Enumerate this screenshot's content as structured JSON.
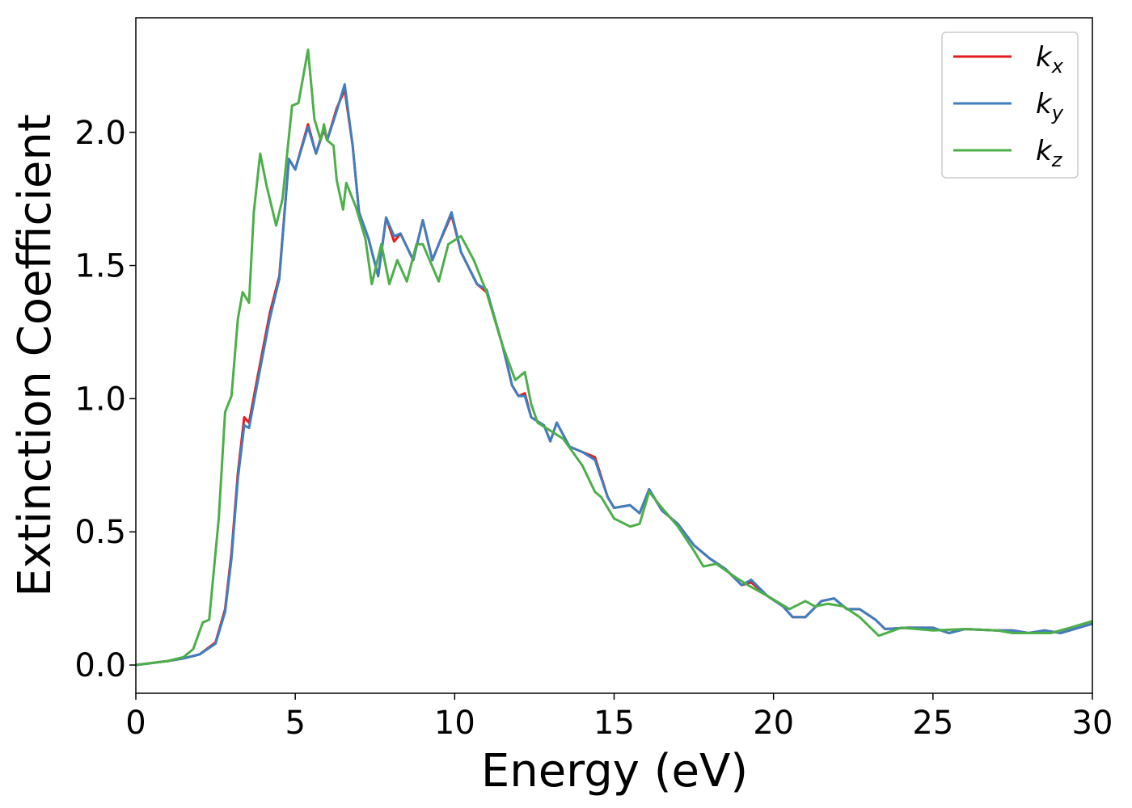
{
  "chart_data": {
    "type": "line",
    "xlabel": "Energy (eV)",
    "ylabel": "Extinction Coefficient",
    "xlim": [
      0,
      30
    ],
    "ylim": [
      -0.106,
      2.43
    ],
    "xticks": [
      0,
      5,
      10,
      15,
      20,
      25,
      30
    ],
    "yticks": [
      {
        "value": 0,
        "label": "0.0"
      },
      {
        "value": 0.5,
        "label": "0.5"
      },
      {
        "value": 1,
        "label": "1.0"
      },
      {
        "value": 1.5,
        "label": "1.5"
      },
      {
        "value": 2,
        "label": "2.0"
      }
    ],
    "legend": "upper right",
    "series": [
      {
        "name": "kx",
        "color": "#e41a1c",
        "x": [
          0,
          1,
          1.5,
          2,
          2.5,
          2.8,
          3,
          3.2,
          3.4,
          3.55,
          3.8,
          4.2,
          4.5,
          4.8,
          5,
          5.4,
          5.65,
          5.9,
          6,
          6.3,
          6.55,
          6.8,
          7,
          7.3,
          7.6,
          7.85,
          8.1,
          8.3,
          8.7,
          9,
          9.3,
          9.5,
          9.9,
          10.2,
          10.7,
          11,
          11.5,
          11.8,
          12,
          12.2,
          12.4,
          12.8,
          13,
          13.2,
          13.6,
          14,
          14.4,
          14.8,
          15,
          15.5,
          15.8,
          16.1,
          16.5,
          17,
          17.5,
          18,
          18.5,
          19,
          19.3,
          19.8,
          20.3,
          20.6,
          21,
          21.5,
          21.9,
          22.3,
          22.7,
          23.2,
          23.5,
          24.2,
          25,
          25.5,
          26,
          27,
          27.5,
          28,
          28.5,
          29,
          30
        ],
        "values": [
          0,
          0.015,
          0.025,
          0.04,
          0.085,
          0.21,
          0.42,
          0.72,
          0.93,
          0.91,
          1.07,
          1.32,
          1.46,
          1.9,
          1.86,
          2.03,
          1.92,
          2.01,
          1.97,
          2.09,
          2.16,
          1.95,
          1.7,
          1.6,
          1.46,
          1.68,
          1.59,
          1.62,
          1.52,
          1.67,
          1.52,
          1.58,
          1.69,
          1.55,
          1.43,
          1.4,
          1.2,
          1.05,
          1.01,
          1.02,
          0.93,
          0.9,
          0.84,
          0.91,
          0.82,
          0.8,
          0.78,
          0.63,
          0.59,
          0.6,
          0.57,
          0.66,
          0.58,
          0.53,
          0.45,
          0.4,
          0.36,
          0.3,
          0.31,
          0.26,
          0.22,
          0.18,
          0.18,
          0.24,
          0.25,
          0.21,
          0.21,
          0.17,
          0.135,
          0.14,
          0.14,
          0.12,
          0.135,
          0.13,
          0.13,
          0.12,
          0.13,
          0.12,
          0.155
        ]
      },
      {
        "name": "ky",
        "color": "#3f7fbf",
        "x": [
          0,
          1,
          1.5,
          2,
          2.5,
          2.8,
          3,
          3.2,
          3.4,
          3.55,
          3.8,
          4.2,
          4.5,
          4.8,
          5,
          5.4,
          5.65,
          5.9,
          6,
          6.3,
          6.55,
          6.8,
          7,
          7.3,
          7.6,
          7.85,
          8.1,
          8.3,
          8.7,
          9,
          9.3,
          9.5,
          9.9,
          10.2,
          10.7,
          11,
          11.5,
          11.8,
          12,
          12.2,
          12.4,
          12.8,
          13,
          13.2,
          13.6,
          14,
          14.4,
          14.8,
          15,
          15.5,
          15.8,
          16.1,
          16.5,
          17,
          17.5,
          18,
          18.5,
          19,
          19.3,
          19.8,
          20.3,
          20.6,
          21,
          21.5,
          21.9,
          22.3,
          22.7,
          23.2,
          23.5,
          24.2,
          25,
          25.5,
          26,
          27,
          27.5,
          28,
          28.5,
          29,
          30
        ],
        "values": [
          0,
          0.015,
          0.025,
          0.04,
          0.08,
          0.2,
          0.4,
          0.7,
          0.9,
          0.89,
          1.05,
          1.3,
          1.45,
          1.9,
          1.86,
          2.02,
          1.92,
          2.02,
          1.97,
          2.08,
          2.18,
          1.95,
          1.7,
          1.6,
          1.46,
          1.68,
          1.61,
          1.62,
          1.52,
          1.67,
          1.52,
          1.58,
          1.7,
          1.55,
          1.43,
          1.41,
          1.2,
          1.05,
          1.01,
          1.01,
          0.93,
          0.9,
          0.84,
          0.91,
          0.82,
          0.8,
          0.77,
          0.63,
          0.59,
          0.6,
          0.57,
          0.66,
          0.58,
          0.53,
          0.45,
          0.4,
          0.36,
          0.3,
          0.32,
          0.26,
          0.22,
          0.18,
          0.18,
          0.24,
          0.25,
          0.21,
          0.21,
          0.17,
          0.135,
          0.14,
          0.14,
          0.12,
          0.135,
          0.13,
          0.13,
          0.12,
          0.13,
          0.12,
          0.155
        ]
      },
      {
        "name": "kz",
        "color": "#4daf4a",
        "x": [
          0,
          1,
          1.5,
          1.8,
          2.1,
          2.3,
          2.6,
          2.8,
          3,
          3.2,
          3.35,
          3.55,
          3.7,
          3.9,
          4.1,
          4.4,
          4.6,
          4.9,
          5.1,
          5.4,
          5.6,
          5.8,
          5.9,
          6,
          6.2,
          6.3,
          6.5,
          6.6,
          6.9,
          7.2,
          7.4,
          7.7,
          7.95,
          8.2,
          8.5,
          8.8,
          9,
          9.5,
          9.8,
          10.2,
          10.6,
          11,
          11.5,
          11.9,
          12.2,
          12.4,
          12.6,
          13,
          13.4,
          14,
          14.4,
          14.6,
          15,
          15.5,
          15.8,
          16.1,
          16.5,
          17,
          17.5,
          17.8,
          18.2,
          18.8,
          19.2,
          19.8,
          20.5,
          21,
          21.3,
          21.7,
          22.2,
          22.7,
          23.3,
          24,
          25,
          26,
          27,
          27.5,
          28,
          28.7,
          29.3,
          30
        ],
        "values": [
          0,
          0.015,
          0.03,
          0.06,
          0.16,
          0.17,
          0.55,
          0.95,
          1.01,
          1.3,
          1.4,
          1.36,
          1.7,
          1.92,
          1.8,
          1.65,
          1.75,
          2.1,
          2.11,
          2.31,
          2.05,
          1.97,
          2.03,
          1.97,
          1.95,
          1.82,
          1.71,
          1.81,
          1.72,
          1.6,
          1.43,
          1.58,
          1.43,
          1.52,
          1.44,
          1.58,
          1.58,
          1.44,
          1.58,
          1.61,
          1.52,
          1.4,
          1.2,
          1.07,
          1.1,
          0.98,
          0.91,
          0.88,
          0.85,
          0.75,
          0.65,
          0.63,
          0.55,
          0.52,
          0.53,
          0.65,
          0.59,
          0.52,
          0.43,
          0.37,
          0.38,
          0.33,
          0.3,
          0.26,
          0.21,
          0.24,
          0.22,
          0.23,
          0.22,
          0.18,
          0.11,
          0.14,
          0.13,
          0.135,
          0.13,
          0.12,
          0.12,
          0.12,
          0.14,
          0.165
        ]
      }
    ]
  }
}
